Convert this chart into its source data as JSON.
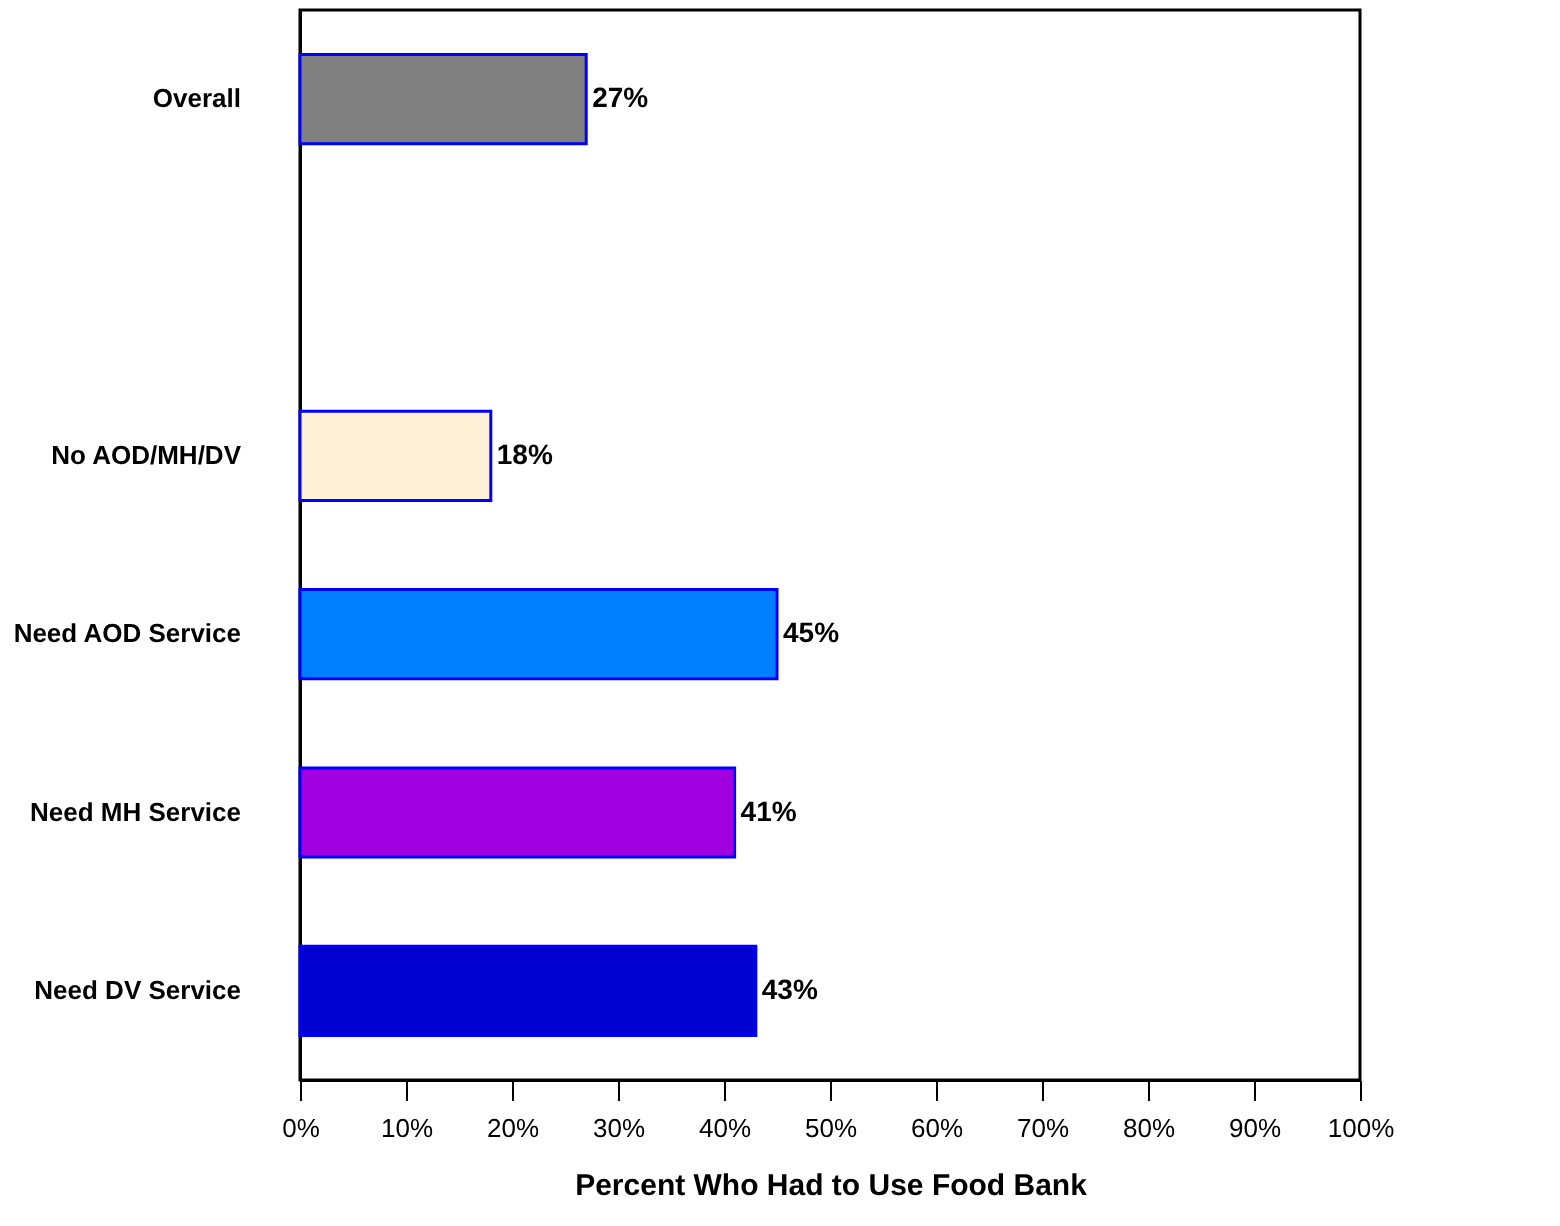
{
  "chart_data": {
    "type": "bar",
    "orientation": "horizontal",
    "xlabel": "Percent Who Had to Use Food Bank",
    "categories": [
      "Overall",
      null,
      "No AOD/MH/DV",
      "Need AOD Service",
      "Need MH Service",
      "Need DV Service"
    ],
    "values": [
      27,
      null,
      18,
      45,
      41,
      43
    ],
    "colors": [
      "#808080",
      "#ffffff",
      "#fff0d8",
      "#0080ff",
      "#a000e0",
      "#0000d0"
    ],
    "value_labels": [
      "27%",
      null,
      "18%",
      "45%",
      "41%",
      "43%"
    ],
    "xlim": [
      0,
      100
    ],
    "xticks": [
      {
        "value": 0,
        "label": "0%"
      },
      {
        "value": 10,
        "label": "10%"
      },
      {
        "value": 20,
        "label": "20%"
      },
      {
        "value": 30,
        "label": "30%"
      },
      {
        "value": 40,
        "label": "40%"
      },
      {
        "value": 50,
        "label": "50%"
      },
      {
        "value": 60,
        "label": "60%"
      },
      {
        "value": 70,
        "label": "70%"
      },
      {
        "value": 80,
        "label": "80%"
      },
      {
        "value": 90,
        "label": "90%"
      },
      {
        "value": 100,
        "label": "100%"
      }
    ],
    "grid": false
  }
}
